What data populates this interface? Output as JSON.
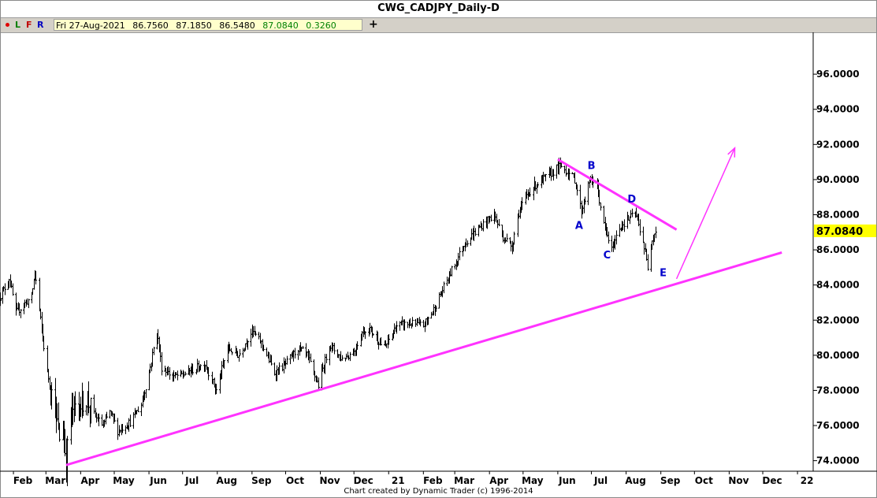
{
  "title": "CWG_CADJPY_Daily-D",
  "toolbar": {
    "btn_l": "L",
    "btn_f": "F",
    "btn_r": "R",
    "ohlc": {
      "date": "Fri 27-Aug-2021",
      "open": "86.7560",
      "high": "87.1850",
      "low": "86.5480",
      "close": "87.0840",
      "change": "0.3260"
    },
    "plus": "+"
  },
  "colors": {
    "trendline": "#ff33ff",
    "wave_label": "#0000cc",
    "last_price_bg": "#ffff00",
    "close_text": "#008000",
    "bars": "#000000"
  },
  "chart_data": {
    "type": "bar",
    "subtype": "ohlc",
    "title": "CWG_CADJPY_Daily-D",
    "x_axis": {
      "tick_labels": [
        "Feb",
        "Mar",
        "Apr",
        "May",
        "Jun",
        "Jul",
        "Aug",
        "Sep",
        "Oct",
        "Nov",
        "Dec",
        "21",
        "Feb",
        "Mar",
        "Apr",
        "May",
        "Jun",
        "Jul",
        "Aug",
        "Sep",
        "Oct",
        "Nov",
        "Dec",
        "22"
      ],
      "range": [
        "2020-01-20",
        "2022-01-15"
      ]
    },
    "y_axis": {
      "range": [
        73.4,
        97.8
      ],
      "tick_labels": [
        "74.0000",
        "76.0000",
        "78.0000",
        "80.0000",
        "82.0000",
        "84.0000",
        "86.0000",
        "88.0000",
        "90.0000",
        "92.0000",
        "94.0000",
        "96.0000"
      ],
      "side": "right"
    },
    "last_price": "87.0840",
    "price_path": [
      [
        "2020-01-20",
        83.3
      ],
      [
        "2020-01-28",
        84.4
      ],
      [
        "2020-02-03",
        82.4
      ],
      [
        "2020-02-10",
        82.9
      ],
      [
        "2020-02-17",
        83.3
      ],
      [
        "2020-02-20",
        84.8
      ],
      [
        "2020-02-25",
        82.0
      ],
      [
        "2020-03-02",
        79.0
      ],
      [
        "2020-03-09",
        77.0
      ],
      [
        "2020-03-13",
        75.3
      ],
      [
        "2020-03-16",
        75.8
      ],
      [
        "2020-03-19",
        74.0
      ],
      [
        "2020-03-23",
        76.8
      ],
      [
        "2020-03-27",
        77.0
      ],
      [
        "2020-04-06",
        77.5
      ],
      [
        "2020-04-15",
        76.4
      ],
      [
        "2020-04-21",
        76.0
      ],
      [
        "2020-04-27",
        76.8
      ],
      [
        "2020-05-04",
        75.7
      ],
      [
        "2020-05-15",
        76.2
      ],
      [
        "2020-05-25",
        77.2
      ],
      [
        "2020-06-01",
        79.0
      ],
      [
        "2020-06-08",
        81.4
      ],
      [
        "2020-06-12",
        79.3
      ],
      [
        "2020-06-22",
        78.8
      ],
      [
        "2020-07-01",
        78.9
      ],
      [
        "2020-07-14",
        79.3
      ],
      [
        "2020-07-21",
        79.5
      ],
      [
        "2020-07-31",
        78.0
      ],
      [
        "2020-08-10",
        80.4
      ],
      [
        "2020-08-20",
        80.0
      ],
      [
        "2020-09-01",
        81.4
      ],
      [
        "2020-09-10",
        80.6
      ],
      [
        "2020-09-21",
        79.0
      ],
      [
        "2020-10-01",
        79.5
      ],
      [
        "2020-10-12",
        80.4
      ],
      [
        "2020-10-20",
        80.0
      ],
      [
        "2020-10-30",
        78.3
      ],
      [
        "2020-11-09",
        80.6
      ],
      [
        "2020-11-20",
        79.8
      ],
      [
        "2020-12-01",
        80.2
      ],
      [
        "2020-12-08",
        81.3
      ],
      [
        "2020-12-15",
        81.5
      ],
      [
        "2020-12-28",
        80.4
      ],
      [
        "2021-01-08",
        81.7
      ],
      [
        "2021-01-20",
        81.8
      ],
      [
        "2021-02-01",
        81.7
      ],
      [
        "2021-02-10",
        82.6
      ],
      [
        "2021-02-25",
        84.7
      ],
      [
        "2021-03-10",
        86.4
      ],
      [
        "2021-03-25",
        87.4
      ],
      [
        "2021-04-05",
        88.0
      ],
      [
        "2021-04-12",
        86.8
      ],
      [
        "2021-04-21",
        86.2
      ],
      [
        "2021-04-26",
        88.0
      ],
      [
        "2021-05-05",
        89.2
      ],
      [
        "2021-05-12",
        89.7
      ],
      [
        "2021-05-25",
        90.3
      ],
      [
        "2021-06-03",
        90.8
      ],
      [
        "2021-06-10",
        90.4
      ],
      [
        "2021-06-16",
        90.0
      ],
      [
        "2021-06-22",
        88.2
      ],
      [
        "2021-06-29",
        89.9
      ],
      [
        "2021-07-05",
        89.9
      ],
      [
        "2021-07-12",
        87.4
      ],
      [
        "2021-07-19",
        86.0
      ],
      [
        "2021-07-26",
        87.3
      ],
      [
        "2021-08-02",
        87.7
      ],
      [
        "2021-08-09",
        88.1
      ],
      [
        "2021-08-16",
        86.5
      ],
      [
        "2021-08-20",
        85.0
      ],
      [
        "2021-08-24",
        86.7
      ],
      [
        "2021-08-27",
        87.08
      ]
    ],
    "trendlines": [
      {
        "from": [
          "2020-03-19",
          73.75
        ],
        "to": [
          "2021-12-18",
          85.85
        ]
      },
      {
        "from": [
          "2021-06-01",
          91.15
        ],
        "to": [
          "2021-09-15",
          87.15
        ]
      }
    ],
    "projection_arrow": {
      "from": [
        "2021-09-15",
        84.35
      ],
      "to": [
        "2021-11-06",
        91.8
      ]
    },
    "wave_labels": [
      {
        "text": "A",
        "date": "2021-06-20",
        "price": 87.2
      },
      {
        "text": "B",
        "date": "2021-07-01",
        "price": 90.6
      },
      {
        "text": "C",
        "date": "2021-07-15",
        "price": 85.5
      },
      {
        "text": "D",
        "date": "2021-08-06",
        "price": 88.7
      },
      {
        "text": "E",
        "date": "2021-09-03",
        "price": 84.5
      }
    ]
  },
  "credit": "Chart created by Dynamic Trader  (c) 1996-2014"
}
